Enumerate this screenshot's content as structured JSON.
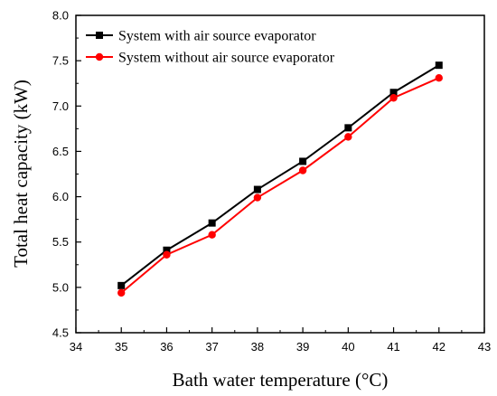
{
  "chart_data": {
    "type": "line",
    "title": "",
    "xlabel": "Bath water temperature (°C)",
    "ylabel": "Total heat capacity (kW)",
    "xlim": [
      34,
      43
    ],
    "ylim": [
      4.5,
      8.0
    ],
    "xticks": [
      34,
      35,
      36,
      37,
      38,
      39,
      40,
      41,
      42,
      43
    ],
    "yticks": [
      4.5,
      5.0,
      5.5,
      6.0,
      6.5,
      7.0,
      7.5,
      8.0
    ],
    "x": [
      35,
      36,
      37,
      38,
      39,
      40,
      41,
      42
    ],
    "grid": false,
    "legend_position": "top-left",
    "series": [
      {
        "name": "System with air source evaporator",
        "color": "#000000",
        "marker": "square",
        "values": [
          5.02,
          5.41,
          5.71,
          6.08,
          6.39,
          6.76,
          7.15,
          7.45
        ]
      },
      {
        "name": "System without air source evaporator",
        "color": "#ff0000",
        "marker": "circle",
        "values": [
          4.94,
          5.36,
          5.58,
          5.99,
          6.29,
          6.66,
          7.09,
          7.31
        ]
      }
    ]
  }
}
